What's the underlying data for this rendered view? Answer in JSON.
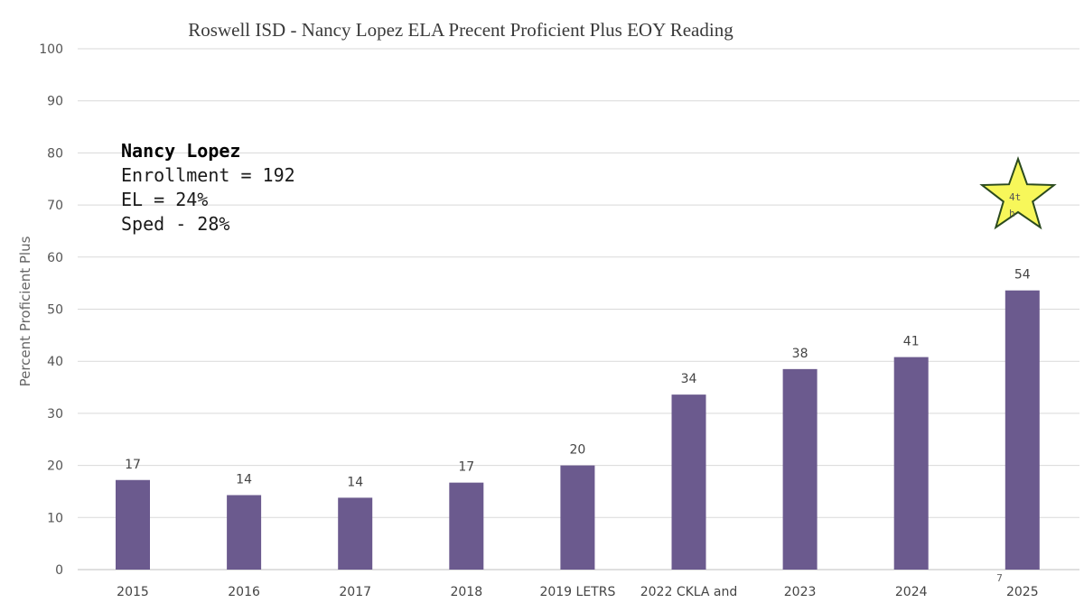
{
  "chart_data": {
    "type": "bar",
    "title": "Roswell ISD - Nancy Lopez ELA Precent Proficient Plus EOY Reading",
    "ylabel": "Percent Proficient Plus",
    "xlabel": "",
    "ylim": [
      0,
      100
    ],
    "yticks": [
      0,
      10,
      20,
      30,
      40,
      50,
      60,
      70,
      80,
      90,
      100
    ],
    "grid": true,
    "categories": [
      "2015",
      "2016",
      "2017",
      "2018",
      "2019 LETRS",
      "2022 CKLA and",
      "2023",
      "2024",
      "2025"
    ],
    "values": [
      17.2,
      14.3,
      13.8,
      16.7,
      20,
      33.6,
      38.5,
      40.8,
      53.6
    ],
    "data_labels": [
      "17",
      "14",
      "14",
      "17",
      "20",
      "34",
      "38",
      "41",
      "54"
    ],
    "bar_color": "#6b5a8e"
  },
  "info_box": {
    "name": "Nancy Lopez",
    "lines": [
      "Enrollment = 192",
      "EL = 24%",
      "Sped - 28%"
    ]
  },
  "star": {
    "line1": "4t",
    "line2": "h",
    "fill": "#f7f75a"
  },
  "footnote": "7"
}
